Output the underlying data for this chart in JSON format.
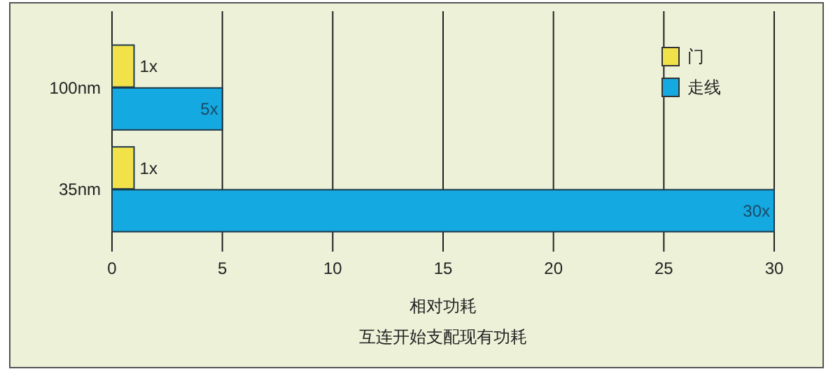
{
  "chart_data": {
    "type": "bar",
    "orientation": "horizontal",
    "xlabel": "相对功耗",
    "annotations": [
      "互连开始支配现有功耗"
    ],
    "categories": [
      "100nm",
      "35nm"
    ],
    "series": [
      {
        "name": "门",
        "color": "#f2e24a",
        "values": [
          1,
          1
        ],
        "value_labels": [
          "1x",
          "1x"
        ]
      },
      {
        "name": "走线",
        "color": "#14a9e0",
        "values": [
          5,
          30
        ],
        "value_labels": [
          "5x",
          "30x"
        ]
      }
    ],
    "xlim": [
      0,
      30
    ],
    "xticks": [
      0,
      5,
      10,
      15,
      20,
      25,
      30
    ],
    "grid": "x",
    "legend": "top right"
  }
}
